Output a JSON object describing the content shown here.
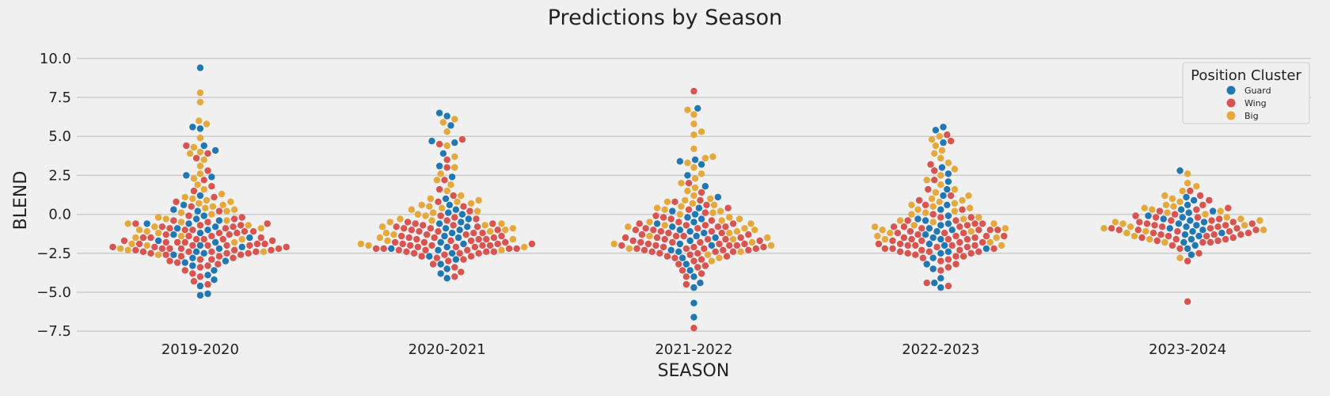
{
  "chart_data": {
    "type": "swarm",
    "title": "Predictions by Season",
    "xlabel": "SEASON",
    "ylabel": "BLEND",
    "categories": [
      "2019-2020",
      "2020-2021",
      "2021-2022",
      "2022-2023",
      "2023-2024"
    ],
    "ylim": [
      -8.0,
      10.6
    ],
    "yticks": [
      10.0,
      7.5,
      5.0,
      2.5,
      0.0,
      -2.5,
      -5.0,
      -7.5
    ],
    "ytick_labels": [
      "10.0",
      "7.5",
      "5.0",
      "2.5",
      "0.0",
      "−2.5",
      "−5.0",
      "−7.5"
    ],
    "grid": "horizontal",
    "legend": {
      "title": "Position Cluster",
      "placement": "top-right",
      "items": [
        {
          "label": "Guard",
          "color": "#1f77b4"
        },
        {
          "label": "Wing",
          "color": "#d9534f"
        },
        {
          "label": "Big",
          "color": "#e5a83a"
        }
      ]
    },
    "series": [
      {
        "name": "Guard",
        "color": "#1f77b4",
        "data": [
          {
            "season": "2019-2020",
            "values": [
              9.4,
              5.6,
              5.5,
              4.4,
              4.1,
              2.5,
              2.4,
              1.2,
              0.6,
              0.3,
              -0.1,
              -0.3,
              -0.6,
              -0.9,
              -1.2,
              -1.5,
              -1.8,
              -2.0,
              -2.2,
              -2.4,
              -2.6,
              -2.8,
              -3.0,
              -3.1,
              -3.3,
              -3.6,
              -3.9,
              -4.2,
              -4.6,
              -5.1,
              -5.2,
              -0.4,
              -0.8,
              -1.3,
              -1.7,
              -2.1,
              -2.5,
              0.2,
              -0.6,
              -1.0
            ]
          },
          {
            "season": "2020-2021",
            "values": [
              6.5,
              6.3,
              5.7,
              4.7,
              4.6,
              3.9,
              3.1,
              2.4,
              1.0,
              0.6,
              0.3,
              0.0,
              -0.3,
              -0.6,
              -0.9,
              -1.2,
              -1.5,
              -1.8,
              -2.1,
              -2.3,
              -2.5,
              -2.7,
              -2.9,
              -3.2,
              -3.5,
              -3.8,
              -4.1,
              -0.5,
              -1.0,
              -1.4,
              -1.9,
              -2.2,
              0.1,
              -0.8
            ]
          },
          {
            "season": "2021-2022",
            "values": [
              6.8,
              3.5,
              3.4,
              3.2,
              2.5,
              1.8,
              1.1,
              0.4,
              0.2,
              -0.2,
              -0.5,
              -0.8,
              -1.1,
              -1.4,
              -1.7,
              -2.0,
              -2.4,
              -2.8,
              -3.2,
              -3.6,
              -4.0,
              -4.4,
              -4.7,
              -5.7,
              -6.6,
              0.0,
              -0.6,
              -1.0,
              -1.5,
              -1.9,
              -2.3,
              -0.3,
              -1.2
            ]
          },
          {
            "season": "2022-2023",
            "values": [
              5.6,
              5.4,
              4.6,
              3.0,
              2.6,
              2.1,
              1.6,
              1.2,
              0.6,
              0.3,
              -0.1,
              -0.4,
              -0.7,
              -1.0,
              -1.3,
              -1.6,
              -1.9,
              -2.2,
              -2.5,
              -2.8,
              -3.2,
              -3.5,
              -4.1,
              -4.4,
              -4.7,
              -0.6,
              -1.1,
              -1.5,
              -2.0,
              -2.4,
              -0.3,
              -0.9
            ]
          },
          {
            "season": "2023-2024",
            "values": [
              2.8,
              1.1,
              0.9,
              0.6,
              0.3,
              0.1,
              -0.2,
              -0.4,
              -0.6,
              -0.8,
              -1.0,
              -1.2,
              -1.4,
              -1.6,
              -1.8,
              -2.0,
              -2.2,
              -2.6,
              -0.1,
              -0.5,
              -0.9,
              -1.3,
              -0.3,
              -0.7,
              0.2,
              -1.1
            ]
          }
        ]
      },
      {
        "name": "Wing",
        "color": "#d9534f",
        "data": [
          {
            "season": "2019-2020",
            "values": [
              4.4,
              3.9,
              3.6,
              2.8,
              2.2,
              1.8,
              1.5,
              1.1,
              0.8,
              0.5,
              0.2,
              -0.1,
              -0.3,
              -0.5,
              -0.7,
              -0.9,
              -1.1,
              -1.3,
              -1.5,
              -1.6,
              -1.8,
              -1.9,
              -2.0,
              -2.1,
              -2.2,
              -2.3,
              -2.4,
              -2.5,
              -2.6,
              -2.7,
              -2.8,
              -2.9,
              -3.0,
              -3.2,
              -3.4,
              -3.6,
              -3.8,
              -4.0,
              -4.3,
              -4.5,
              -0.6,
              -0.8,
              -1.0,
              -1.2,
              -1.4,
              -1.6,
              -1.7,
              -1.9,
              -2.0,
              -2.1,
              -2.2,
              -2.3,
              -2.4,
              -2.5,
              -1.0,
              -1.3,
              -1.5,
              -1.8,
              -2.0,
              -2.2,
              -2.4,
              -0.4,
              -0.9,
              -1.4,
              -1.9,
              -2.3,
              -2.7,
              -3.1,
              -0.2,
              -0.7,
              -1.2,
              -1.7,
              -2.1,
              -2.5,
              -2.9,
              -3.3,
              -1.1,
              -1.6,
              -2.0,
              -2.4,
              -0.8,
              -1.5,
              -2.2,
              -0.6,
              -1.8,
              -2.6
            ]
          },
          {
            "season": "2020-2021",
            "values": [
              4.8,
              4.5,
              3.5,
              3.0,
              2.2,
              1.6,
              1.2,
              0.8,
              0.5,
              0.2,
              -0.1,
              -0.3,
              -0.5,
              -0.7,
              -0.9,
              -1.1,
              -1.3,
              -1.5,
              -1.6,
              -1.8,
              -1.9,
              -2.0,
              -2.1,
              -2.2,
              -2.3,
              -2.4,
              -2.5,
              -2.6,
              -2.7,
              -2.8,
              -3.0,
              -3.2,
              -3.4,
              -3.7,
              -4.0,
              -0.6,
              -0.8,
              -1.0,
              -1.2,
              -1.4,
              -1.6,
              -1.7,
              -1.9,
              -2.0,
              -2.1,
              -2.2,
              -2.3,
              -2.4,
              -2.5,
              -1.0,
              -1.3,
              -1.5,
              -1.8,
              -2.0,
              -2.2,
              -0.4,
              -0.9,
              -1.4,
              -1.9,
              -2.3,
              -2.7,
              -0.2,
              -0.7,
              -1.2,
              -1.7,
              -2.1,
              -2.5,
              -2.9,
              -1.1,
              -1.6,
              -2.0,
              -2.4,
              -0.8,
              -1.5,
              -2.2,
              -0.6,
              -1.8
            ]
          },
          {
            "season": "2021-2022",
            "values": [
              7.9,
              2.0,
              1.4,
              0.9,
              0.6,
              0.4,
              0.1,
              -0.1,
              -0.3,
              -0.5,
              -0.7,
              -0.9,
              -1.1,
              -1.3,
              -1.5,
              -1.6,
              -1.8,
              -1.9,
              -2.0,
              -2.1,
              -2.2,
              -2.3,
              -2.4,
              -2.5,
              -2.6,
              -2.7,
              -2.8,
              -3.0,
              -3.2,
              -3.4,
              -3.6,
              -3.8,
              -4.0,
              -4.5,
              -7.3,
              -0.6,
              -0.8,
              -1.0,
              -1.2,
              -1.4,
              -1.6,
              -1.7,
              -1.9,
              -2.0,
              -2.1,
              -2.2,
              -2.3,
              -2.4,
              -1.0,
              -1.3,
              -1.5,
              -1.8,
              -2.0,
              -2.2,
              -0.4,
              -0.9,
              -1.4,
              -1.9,
              -2.3,
              -2.7,
              -0.2,
              -0.7,
              -1.2,
              -1.7,
              -2.1,
              -2.5,
              -2.9,
              -3.3,
              -1.1,
              -1.6,
              -2.0,
              -2.4,
              -0.8,
              -1.5,
              -2.2,
              0.8,
              0.3,
              -0.6,
              -1.8
            ]
          },
          {
            "season": "2022-2023",
            "values": [
              5.1,
              4.7,
              3.2,
              2.8,
              2.2,
              1.6,
              1.2,
              0.9,
              0.6,
              0.3,
              0.0,
              -0.2,
              -0.4,
              -0.6,
              -0.8,
              -1.0,
              -1.2,
              -1.4,
              -1.6,
              -1.7,
              -1.9,
              -2.0,
              -2.1,
              -2.2,
              -2.3,
              -2.4,
              -2.5,
              -2.6,
              -2.7,
              -2.8,
              -3.0,
              -3.2,
              -3.4,
              -3.6,
              -4.4,
              -4.6,
              -0.6,
              -0.8,
              -1.0,
              -1.2,
              -1.4,
              -1.6,
              -1.8,
              -2.0,
              -2.2,
              -2.4,
              -1.0,
              -1.3,
              -1.5,
              -1.8,
              -2.0,
              -2.2,
              -0.4,
              -0.9,
              -1.4,
              -1.9,
              -2.3,
              -2.7,
              -0.2,
              -0.7,
              -1.2,
              -1.7,
              -2.1,
              -2.5,
              -2.9,
              -1.1,
              -1.6,
              -2.0,
              -2.4,
              -0.8,
              -1.5
            ]
          },
          {
            "season": "2023-2024",
            "values": [
              1.5,
              1.2,
              0.9,
              0.6,
              0.4,
              0.2,
              0.0,
              -0.2,
              -0.4,
              -0.6,
              -0.7,
              -0.8,
              -0.9,
              -1.0,
              -1.1,
              -1.2,
              -1.3,
              -1.4,
              -1.5,
              -1.6,
              -1.7,
              -1.8,
              -2.0,
              -2.2,
              -2.5,
              -3.0,
              -5.6,
              -0.3,
              -0.5,
              -0.7,
              -0.9,
              -1.1,
              -1.3,
              -1.5,
              -1.7,
              -0.1,
              -0.6,
              -1.0,
              -1.4,
              -1.8,
              0.3,
              -0.4,
              -0.8,
              -1.2,
              -1.6,
              -0.2,
              -0.9,
              -1.3,
              -0.5,
              -1.0
            ]
          }
        ]
      },
      {
        "name": "Big",
        "color": "#e5a83a",
        "data": [
          {
            "season": "2019-2020",
            "values": [
              7.8,
              7.2,
              6.0,
              5.8,
              4.9,
              4.3,
              4.0,
              3.9,
              3.5,
              3.1,
              2.6,
              2.3,
              1.9,
              1.6,
              1.3,
              1.0,
              0.8,
              0.6,
              0.4,
              0.2,
              0.0,
              -0.2,
              -0.4,
              -0.6,
              -0.8,
              -1.0,
              -1.2,
              -1.4,
              -1.6,
              -1.8,
              -2.0,
              -2.2,
              -2.4,
              -2.6,
              0.9,
              0.5,
              0.1,
              -0.3,
              -0.7,
              -1.1,
              -1.5,
              -1.9,
              -2.3,
              1.1,
              0.7,
              0.3,
              -0.5,
              -0.9
            ]
          },
          {
            "season": "2020-2021",
            "values": [
              6.1,
              5.9,
              5.3,
              4.4,
              3.7,
              3.0,
              2.6,
              2.2,
              1.9,
              1.5,
              1.2,
              0.9,
              0.7,
              0.5,
              0.3,
              0.1,
              -0.1,
              -0.3,
              -0.5,
              -0.7,
              -0.9,
              -1.1,
              -1.3,
              -1.5,
              -1.7,
              -1.9,
              -2.1,
              -2.3,
              0.8,
              0.4,
              0.0,
              -0.4,
              -0.8,
              -1.2,
              -1.6,
              -2.0,
              1.0,
              0.6,
              0.2,
              -0.6,
              -1.0
            ]
          },
          {
            "season": "2021-2022",
            "values": [
              6.7,
              6.4,
              5.8,
              5.3,
              5.1,
              4.2,
              3.7,
              3.6,
              3.3,
              3.0,
              2.6,
              2.3,
              2.0,
              1.7,
              1.5,
              1.2,
              1.0,
              0.8,
              0.6,
              0.4,
              0.2,
              0.0,
              -0.2,
              -0.4,
              -0.6,
              -0.8,
              -1.0,
              -1.2,
              -1.4,
              -1.6,
              -1.8,
              -2.0,
              -2.2,
              -2.4,
              -2.6,
              -2.8,
              -3.0,
              0.9,
              0.5,
              0.1,
              -0.3,
              -0.7,
              -1.1,
              -1.5,
              -1.9,
              0.7,
              0.3,
              -0.5,
              -0.9
            ]
          },
          {
            "season": "2022-2023",
            "values": [
              5.0,
              4.8,
              4.4,
              4.1,
              3.9,
              3.6,
              3.3,
              2.9,
              2.5,
              2.2,
              1.9,
              1.6,
              1.4,
              1.2,
              1.0,
              0.8,
              0.6,
              0.4,
              0.2,
              0.0,
              -0.2,
              -0.4,
              -0.6,
              -0.8,
              -1.0,
              -1.2,
              -1.4,
              -1.6,
              -1.8,
              -2.0,
              0.9,
              0.5,
              0.1,
              -0.3,
              -0.7,
              -1.1,
              -1.5,
              0.7,
              0.3,
              -0.5,
              -0.9
            ]
          },
          {
            "season": "2023-2024",
            "values": [
              2.6,
              2.0,
              1.8,
              1.5,
              1.2,
              1.0,
              0.8,
              0.6,
              0.4,
              0.2,
              0.0,
              -0.2,
              -0.4,
              -0.6,
              -0.8,
              -1.0,
              -1.2,
              -1.4,
              -1.6,
              -1.8,
              -2.8,
              0.5,
              0.1,
              -0.3,
              -0.7,
              -1.1,
              0.3,
              -0.5,
              -0.9
            ]
          }
        ]
      }
    ]
  }
}
